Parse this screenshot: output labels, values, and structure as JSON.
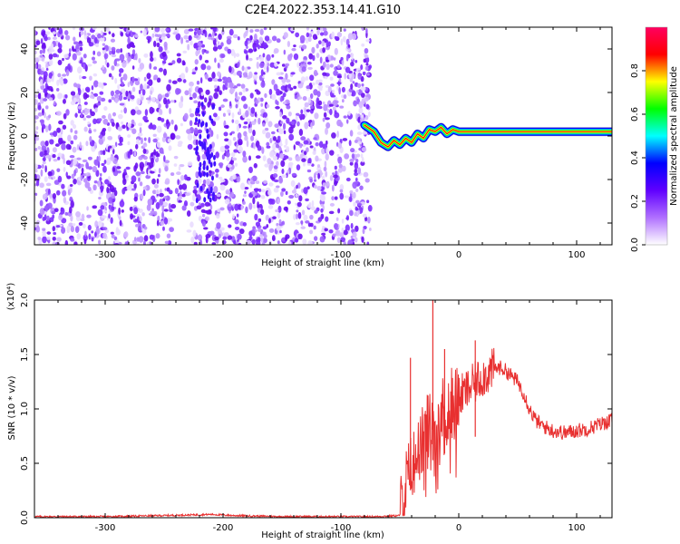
{
  "figure_title": "C2E4.2022.353.14.41.G10",
  "chart_data": [
    {
      "type": "heatmap",
      "title": "C2E4.2022.353.14.41.G10",
      "xlabel": "Height of straight line (km)",
      "ylabel": "Frequency (Hz)",
      "xlim": [
        -360,
        130
      ],
      "ylim": [
        -50,
        50
      ],
      "xticks": [
        -300,
        -200,
        -100,
        0,
        100
      ],
      "xtick_labels": [
        "-300",
        "-200",
        "-100",
        "0",
        "100"
      ],
      "yticks": [
        -40,
        -20,
        0,
        20,
        40
      ],
      "ytick_labels": [
        "-40",
        "-20",
        "0",
        "20",
        "40"
      ],
      "noise_region_x": [
        -360,
        -75
      ],
      "noise_density_band_x": [
        -225,
        -205
      ],
      "signal_track": {
        "x": [
          -80,
          -72,
          -66,
          -60,
          -55,
          -50,
          -45,
          -40,
          -35,
          -30,
          -25,
          -20,
          -15,
          -10,
          -5,
          0,
          20,
          50,
          100,
          130
        ],
        "y": [
          5,
          2,
          -3,
          -5,
          -2,
          -4,
          -1,
          -3,
          1,
          -1,
          3,
          2,
          4,
          1,
          3,
          2,
          2,
          2,
          2,
          2
        ]
      },
      "colorbar": {
        "label": "Normalized spectral amplitude",
        "range": [
          0.0,
          1.0
        ],
        "ticks": [
          0.0,
          0.2,
          0.4,
          0.6,
          0.8
        ],
        "tick_labels": [
          "0.0",
          "0.2",
          "0.4",
          "0.6",
          "0.8"
        ],
        "colors": [
          "#ffffff",
          "#b070ff",
          "#6000ff",
          "#0000ff",
          "#00ffff",
          "#00ff00",
          "#ffff00",
          "#ff0000",
          "#ff0060"
        ]
      },
      "grid": false,
      "legend": "none"
    },
    {
      "type": "line",
      "xlabel": "Height of straight line (km)",
      "ylabel": "SNR (10 * v/v)",
      "y_multiplier": "(x10⁴)",
      "xlim": [
        -360,
        130
      ],
      "ylim": [
        0,
        2.0
      ],
      "xticks": [
        -300,
        -200,
        -100,
        0,
        100
      ],
      "xtick_labels": [
        "-300",
        "-200",
        "-100",
        "0",
        "100"
      ],
      "yticks": [
        0.0,
        0.5,
        1.0,
        1.5,
        2.0
      ],
      "ytick_labels": [
        "0.0",
        "0.5",
        "1.0",
        "1.5",
        "2.0"
      ],
      "series_color": "#e83030",
      "envelope": {
        "x": [
          -360,
          -300,
          -250,
          -210,
          -190,
          -150,
          -110,
          -70,
          -50,
          -45,
          -40,
          -35,
          -30,
          -25,
          -20,
          -15,
          -10,
          -5,
          0,
          5,
          10,
          15,
          20,
          25,
          30,
          35,
          40,
          45,
          50,
          55,
          60,
          65,
          70,
          80,
          90,
          100,
          110,
          120,
          130
        ],
        "y": [
          0.01,
          0.01,
          0.02,
          0.03,
          0.02,
          0.01,
          0.01,
          0.01,
          0.02,
          0.3,
          0.45,
          0.6,
          0.7,
          0.85,
          0.9,
          0.95,
          1.0,
          1.05,
          1.1,
          1.15,
          1.2,
          1.25,
          1.3,
          1.33,
          1.37,
          1.38,
          1.35,
          1.3,
          1.25,
          1.15,
          1.0,
          0.9,
          0.85,
          0.8,
          0.78,
          0.8,
          0.82,
          0.86,
          0.9
        ]
      },
      "spikes": [
        {
          "x": -41,
          "y": 1.47
        },
        {
          "x": -22,
          "y": 2.0
        },
        {
          "x": -12,
          "y": 1.55
        },
        {
          "x": 14,
          "y": 1.63
        }
      ],
      "grid": false,
      "legend": "none"
    }
  ]
}
